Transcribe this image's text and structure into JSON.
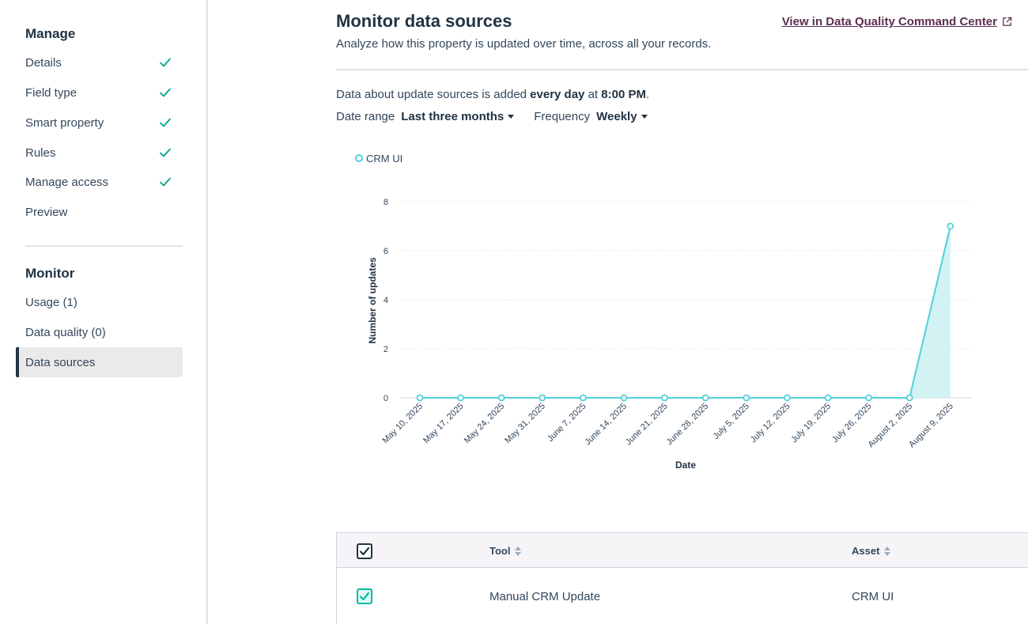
{
  "sidebar": {
    "manage_title": "Manage",
    "manage_items": [
      {
        "label": "Details",
        "done": true
      },
      {
        "label": "Field type",
        "done": true
      },
      {
        "label": "Smart property",
        "done": true
      },
      {
        "label": "Rules",
        "done": true
      },
      {
        "label": "Manage access",
        "done": true
      },
      {
        "label": "Preview",
        "done": false
      }
    ],
    "monitor_title": "Monitor",
    "monitor_items": [
      {
        "label": "Usage (1)"
      },
      {
        "label": "Data quality (0)"
      },
      {
        "label": "Data sources",
        "active": true
      }
    ]
  },
  "header": {
    "title": "Monitor data sources",
    "subtitle": "Analyze how this property is updated over time, across all your records.",
    "link_label": "View in Data Quality Command Center"
  },
  "info": {
    "prefix": "Data about update sources is added ",
    "frequency_bold": "every day",
    "middle": " at ",
    "time_bold": "8:00 PM",
    "suffix": "."
  },
  "filters": {
    "date_range_label": "Date range",
    "date_range_value": "Last three months",
    "frequency_label": "Frequency",
    "frequency_value": "Weekly"
  },
  "chart_data": {
    "type": "area",
    "xlabel": "Date",
    "ylabel": "Number of updates",
    "ylim": [
      0,
      8
    ],
    "yticks": [
      0,
      2,
      4,
      6,
      8
    ],
    "grid": true,
    "legend_position": "top-left",
    "categories": [
      "May 10, 2025",
      "May 17, 2025",
      "May 24, 2025",
      "May 31, 2025",
      "June 7, 2025",
      "June 14, 2025",
      "June 21, 2025",
      "June 28, 2025",
      "July 5, 2025",
      "July 12, 2025",
      "July 19, 2025",
      "July 26, 2025",
      "August 2, 2025",
      "August 9, 2025"
    ],
    "series": [
      {
        "name": "CRM UI",
        "color": "#4fd1d9",
        "values": [
          0,
          0,
          0,
          0,
          0,
          0,
          0,
          0,
          0,
          0,
          0,
          0,
          0,
          7
        ]
      }
    ]
  },
  "table": {
    "columns": [
      "Tool",
      "Asset"
    ],
    "rows": [
      {
        "tool": "Manual CRM Update",
        "asset": "CRM UI",
        "checked": true
      }
    ]
  },
  "colors": {
    "accent": "#00bda5",
    "series": "#4fd1d9",
    "link": "#5c2e4f"
  }
}
